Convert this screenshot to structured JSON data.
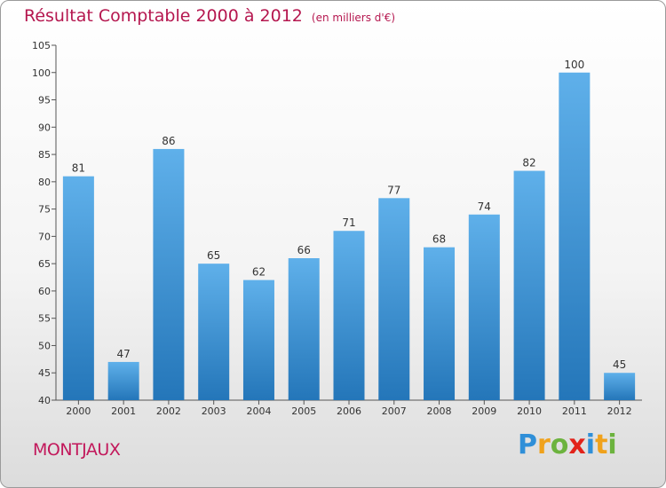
{
  "title": "Résultat Comptable 2000 à 2012",
  "unit": "(en milliers d'€)",
  "town": "MONTJAUX",
  "logo": {
    "text": "Proxiti",
    "letters": [
      {
        "ch": "P",
        "color": "#2f8fd8"
      },
      {
        "ch": "r",
        "color": "#f0a21c"
      },
      {
        "ch": "o",
        "color": "#6cb33e"
      },
      {
        "ch": "x",
        "color": "#e2231a"
      },
      {
        "ch": "i",
        "color": "#2f8fd8"
      },
      {
        "ch": "t",
        "color": "#f0a21c"
      },
      {
        "ch": "i",
        "color": "#6cb33e"
      }
    ]
  },
  "colors": {
    "bar_light": "#5fb0ea",
    "bar_dark": "#2476b9",
    "title": "#b5174f",
    "town": "#c2185b"
  },
  "chart_data": {
    "type": "bar",
    "title": "Résultat Comptable 2000 à 2012",
    "xlabel": "",
    "ylabel": "",
    "categories": [
      "2000",
      "2001",
      "2002",
      "2003",
      "2004",
      "2005",
      "2006",
      "2007",
      "2008",
      "2009",
      "2010",
      "2011",
      "2012"
    ],
    "values": [
      81,
      47,
      86,
      65,
      62,
      66,
      71,
      77,
      68,
      74,
      82,
      100,
      45
    ],
    "ylim": [
      40,
      105
    ],
    "yticks": [
      40,
      45,
      50,
      55,
      60,
      65,
      70,
      75,
      80,
      85,
      90,
      95,
      100,
      105
    ],
    "grid": false,
    "legend": "none"
  }
}
